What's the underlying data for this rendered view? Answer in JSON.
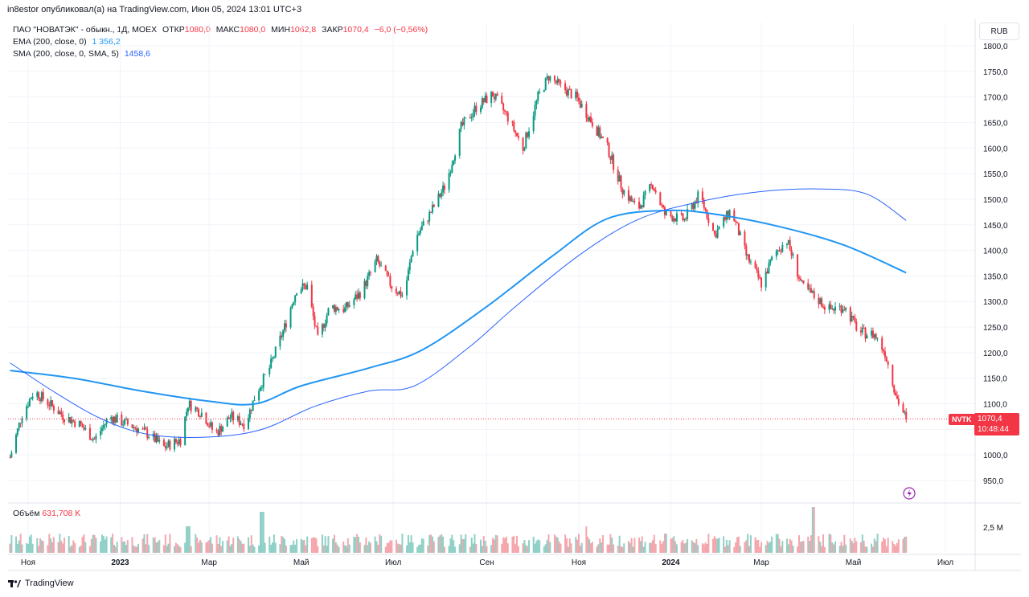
{
  "header": {
    "publisher": "in8estor опубликовал(а) на TradingView.com, Июн 05, 2024 13:01 UTC+3"
  },
  "legend": {
    "title": "ПАО \"НОВАТЭК\" - обыкн., 1Д, MOEX",
    "open_label": "ОТКР",
    "open_value": "1080,0",
    "high_label": "МАКС",
    "high_value": "1080,0",
    "low_label": "МИН",
    "low_value": "1062,8",
    "close_label": "ЗАКР",
    "close_value": "1070,4",
    "change": "−6,0 (−0,56%)",
    "ema_label": "EMA (200, close, 0)",
    "ema_value": "1 356,2",
    "sma_label": "SMA (200, close, 0, SMA, 5)",
    "sma_value": "1458,6"
  },
  "currency": "RUB",
  "last_price": {
    "ticker": "NVTK",
    "price": "1070,4",
    "countdown": "10:48:44"
  },
  "volume": {
    "label": "Объём",
    "value": "631,708 K",
    "axis_label": "2,5 M"
  },
  "footer": {
    "brand": "TradingView"
  },
  "colors": {
    "up": "#089981",
    "down": "#f23645",
    "ema": "#2196f3",
    "sma": "#2962ff"
  },
  "chart_data": {
    "type": "candlestick",
    "y_ticks": [
      "1800,0",
      "1750,0",
      "1700,0",
      "1650,0",
      "1600,0",
      "1550,0",
      "1500,0",
      "1450,0",
      "1400,0",
      "1350,0",
      "1300,0",
      "1250,0",
      "1200,0",
      "1150,0",
      "1100,0",
      "1050,0",
      "1000,0",
      "950,0"
    ],
    "y_tick_values": [
      1800,
      1750,
      1700,
      1650,
      1600,
      1550,
      1500,
      1450,
      1400,
      1350,
      1300,
      1250,
      1200,
      1150,
      1100,
      1050,
      1000,
      950
    ],
    "x_labels": [
      "Ноя",
      "2023",
      "Мар",
      "Май",
      "Июл",
      "Сен",
      "Ноя",
      "2024",
      "Мар",
      "Май",
      "Июл"
    ],
    "x_label_dates": [
      "2022-11",
      "2023-01",
      "2023-03",
      "2023-05",
      "2023-07",
      "2023-09",
      "2023-11",
      "2024-01",
      "2024-03",
      "2024-05",
      "2024-07"
    ],
    "price_path": [
      [
        "2022-10-20",
        995
      ],
      [
        "2022-10-28",
        1080
      ],
      [
        "2022-11-05",
        1125
      ],
      [
        "2022-11-15",
        1100
      ],
      [
        "2022-11-25",
        1075
      ],
      [
        "2022-12-05",
        1060
      ],
      [
        "2022-12-15",
        1030
      ],
      [
        "2022-12-25",
        1075
      ],
      [
        "2023-01-10",
        1055
      ],
      [
        "2023-01-20",
        1040
      ],
      [
        "2023-01-30",
        1015
      ],
      [
        "2023-02-10",
        1030
      ],
      [
        "2023-02-15",
        1100
      ],
      [
        "2023-02-25",
        1080
      ],
      [
        "2023-03-05",
        1040
      ],
      [
        "2023-03-15",
        1075
      ],
      [
        "2023-03-25",
        1060
      ],
      [
        "2023-04-01",
        1120
      ],
      [
        "2023-04-10",
        1170
      ],
      [
        "2023-04-20",
        1250
      ],
      [
        "2023-04-28",
        1325
      ],
      [
        "2023-05-05",
        1330
      ],
      [
        "2023-05-12",
        1225
      ],
      [
        "2023-05-20",
        1290
      ],
      [
        "2023-05-30",
        1285
      ],
      [
        "2023-06-10",
        1320
      ],
      [
        "2023-06-20",
        1380
      ],
      [
        "2023-06-30",
        1330
      ],
      [
        "2023-07-08",
        1310
      ],
      [
        "2023-07-15",
        1420
      ],
      [
        "2023-07-25",
        1470
      ],
      [
        "2023-08-05",
        1530
      ],
      [
        "2023-08-15",
        1640
      ],
      [
        "2023-08-25",
        1680
      ],
      [
        "2023-09-05",
        1705
      ],
      [
        "2023-09-15",
        1660
      ],
      [
        "2023-09-25",
        1600
      ],
      [
        "2023-10-05",
        1700
      ],
      [
        "2023-10-12",
        1740
      ],
      [
        "2023-10-20",
        1720
      ],
      [
        "2023-10-30",
        1700
      ],
      [
        "2023-11-10",
        1650
      ],
      [
        "2023-11-20",
        1600
      ],
      [
        "2023-11-30",
        1520
      ],
      [
        "2023-12-10",
        1480
      ],
      [
        "2023-12-20",
        1530
      ],
      [
        "2023-12-28",
        1470
      ],
      [
        "2024-01-10",
        1460
      ],
      [
        "2024-01-20",
        1510
      ],
      [
        "2024-01-30",
        1430
      ],
      [
        "2024-02-10",
        1480
      ],
      [
        "2024-02-20",
        1390
      ],
      [
        "2024-03-01",
        1335
      ],
      [
        "2024-03-10",
        1395
      ],
      [
        "2024-03-18",
        1420
      ],
      [
        "2024-03-28",
        1330
      ],
      [
        "2024-04-05",
        1310
      ],
      [
        "2024-04-15",
        1285
      ],
      [
        "2024-04-25",
        1290
      ],
      [
        "2024-05-05",
        1240
      ],
      [
        "2024-05-15",
        1235
      ],
      [
        "2024-05-22",
        1200
      ],
      [
        "2024-05-30",
        1110
      ],
      [
        "2024-06-05",
        1070.4
      ]
    ],
    "ema_path": [
      [
        "2022-10-20",
        1165
      ],
      [
        "2022-12-01",
        1150
      ],
      [
        "2023-01-15",
        1125
      ],
      [
        "2023-03-01",
        1105
      ],
      [
        "2023-04-01",
        1100
      ],
      [
        "2023-05-01",
        1135
      ],
      [
        "2023-06-15",
        1170
      ],
      [
        "2023-07-20",
        1205
      ],
      [
        "2023-09-01",
        1290
      ],
      [
        "2023-10-15",
        1390
      ],
      [
        "2023-11-20",
        1462
      ],
      [
        "2023-12-30",
        1478
      ],
      [
        "2024-02-01",
        1470
      ],
      [
        "2024-03-15",
        1445
      ],
      [
        "2024-04-25",
        1410
      ],
      [
        "2024-06-05",
        1356.2
      ]
    ],
    "sma_path": [
      [
        "2022-10-20",
        1180
      ],
      [
        "2022-11-20",
        1120
      ],
      [
        "2022-12-20",
        1070
      ],
      [
        "2023-01-20",
        1040
      ],
      [
        "2023-03-01",
        1035
      ],
      [
        "2023-04-05",
        1050
      ],
      [
        "2023-05-10",
        1095
      ],
      [
        "2023-06-15",
        1125
      ],
      [
        "2023-07-15",
        1135
      ],
      [
        "2023-08-20",
        1210
      ],
      [
        "2023-09-20",
        1290
      ],
      [
        "2023-11-01",
        1390
      ],
      [
        "2023-12-10",
        1460
      ],
      [
        "2024-01-20",
        1495
      ],
      [
        "2024-03-01",
        1515
      ],
      [
        "2024-04-10",
        1520
      ],
      [
        "2024-05-10",
        1510
      ],
      [
        "2024-06-05",
        1458.6
      ]
    ],
    "volume_peaks": [
      [
        "2023-02-15",
        0.55
      ],
      [
        "2023-04-05",
        0.85
      ],
      [
        "2023-11-05",
        0.55
      ],
      [
        "2024-04-05",
        0.95
      ]
    ],
    "last_close": 1070.4
  }
}
